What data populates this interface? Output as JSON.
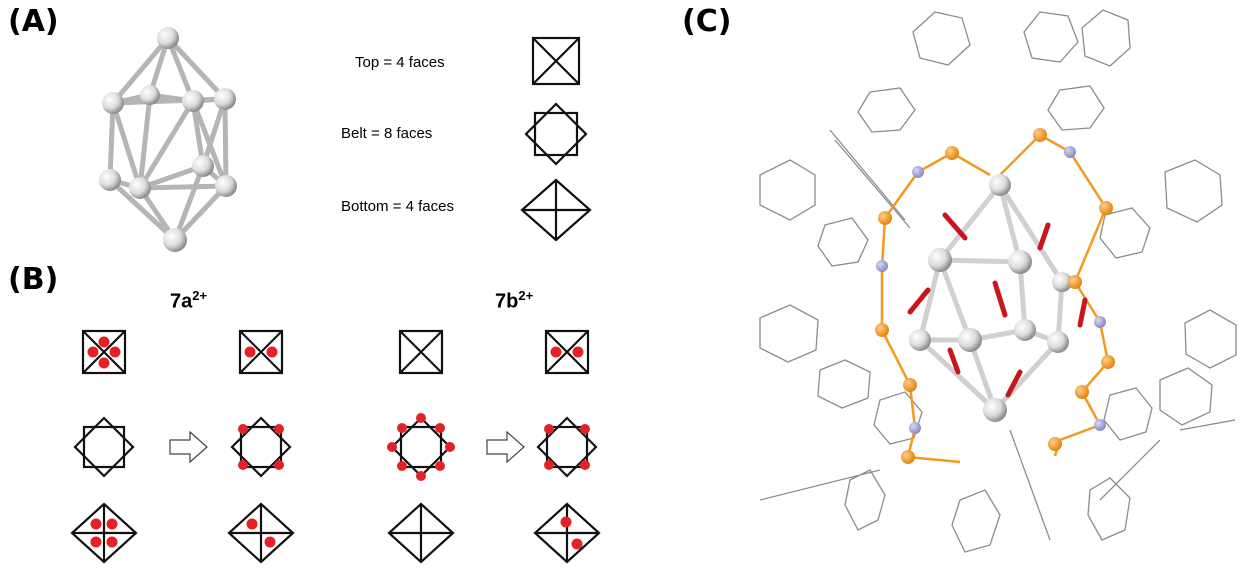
{
  "panels": {
    "a": "(A)",
    "b": "(B)",
    "c": "(C)"
  },
  "face_labels": {
    "top": "Top = 4 faces",
    "belt": "Belt = 8 faces",
    "bottom": "Bottom = 4 faces"
  },
  "columns": {
    "a": {
      "base": "7a",
      "charge": "2+"
    },
    "b": {
      "base": "7b",
      "charge": "2+"
    }
  },
  "colors": {
    "dot": "#e32226",
    "phenyl": "#8c8c8c",
    "phosphorus": "#f39a1e",
    "nitrogen": "#a3a3d6",
    "oxygen": "#c8161d",
    "silver": "#e6e6e6"
  }
}
